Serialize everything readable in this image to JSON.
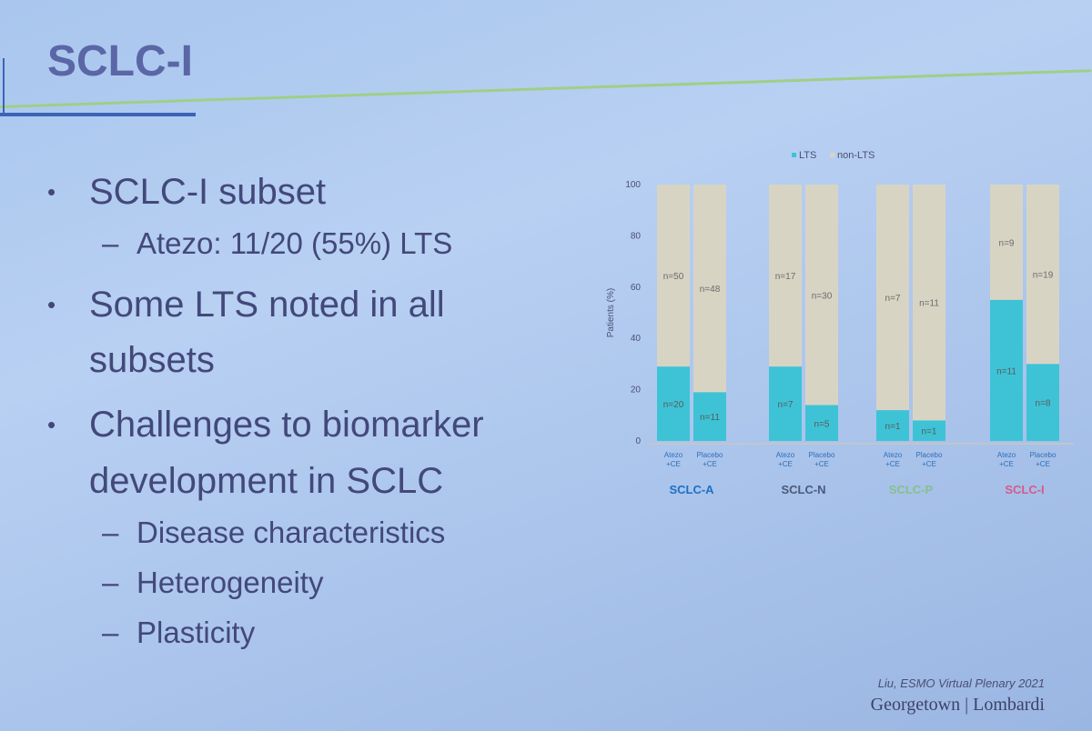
{
  "slide": {
    "title": "SCLC-I",
    "bullets": [
      {
        "text": "SCLC-I subset",
        "subs": [
          "Atezo: 11/20 (55%) LTS"
        ]
      },
      {
        "text": "Some LTS noted in all",
        "continuation": "subsets",
        "subs": []
      },
      {
        "text": "Challenges to biomarker",
        "continuation": "development in SCLC",
        "subs": [
          "Disease characteristics",
          "Heterogeneity",
          "Plasticity"
        ]
      }
    ],
    "bullet_glyph": "•",
    "sub_glyph": "–",
    "citation": "Liu, ESMO Virtual Plenary 2021",
    "brand": "Georgetown | Lombardi"
  },
  "colors": {
    "title": "#5b66a6",
    "lts": "#3ec3d6",
    "non_lts": "#d8d4c4",
    "SCLC-A": "#1f6fc4",
    "SCLC-N": "#4a5a7a",
    "SCLC-P": "#86c08b",
    "SCLC-I": "#d65a8a"
  },
  "chart_data": {
    "type": "bar",
    "stacked": true,
    "ylabel": "Patients (%)",
    "ylim": [
      0,
      100
    ],
    "yticks": [
      0,
      20,
      40,
      60,
      80,
      100
    ],
    "grid": false,
    "legend": {
      "position": "top",
      "entries": [
        "LTS",
        "non-LTS"
      ]
    },
    "groups": [
      {
        "name": "SCLC-A",
        "bars": [
          {
            "label": [
              "Atezo",
              "+CE"
            ],
            "lts_pct": 29,
            "lts_n": "n=20",
            "non_lts_n": "n=50"
          },
          {
            "label": [
              "Placebo",
              "+CE"
            ],
            "lts_pct": 19,
            "lts_n": "n=11",
            "non_lts_n": "n=48"
          }
        ]
      },
      {
        "name": "SCLC-N",
        "bars": [
          {
            "label": [
              "Atezo",
              "+CE"
            ],
            "lts_pct": 29,
            "lts_n": "n=7",
            "non_lts_n": "n=17"
          },
          {
            "label": [
              "Placebo",
              "+CE"
            ],
            "lts_pct": 14,
            "lts_n": "n=5",
            "non_lts_n": "n=30"
          }
        ]
      },
      {
        "name": "SCLC-P",
        "bars": [
          {
            "label": [
              "Atezo",
              "+CE"
            ],
            "lts_pct": 12,
            "lts_n": "n=1",
            "non_lts_n": "n=7"
          },
          {
            "label": [
              "Placebo",
              "+CE"
            ],
            "lts_pct": 8,
            "lts_n": "n=1",
            "non_lts_n": "n=11"
          }
        ]
      },
      {
        "name": "SCLC-I",
        "bars": [
          {
            "label": [
              "Atezo",
              "+CE"
            ],
            "lts_pct": 55,
            "lts_n": "n=11",
            "non_lts_n": "n=9"
          },
          {
            "label": [
              "Placebo",
              "+CE"
            ],
            "lts_pct": 30,
            "lts_n": "n=8",
            "non_lts_n": "n=19"
          }
        ]
      }
    ]
  }
}
